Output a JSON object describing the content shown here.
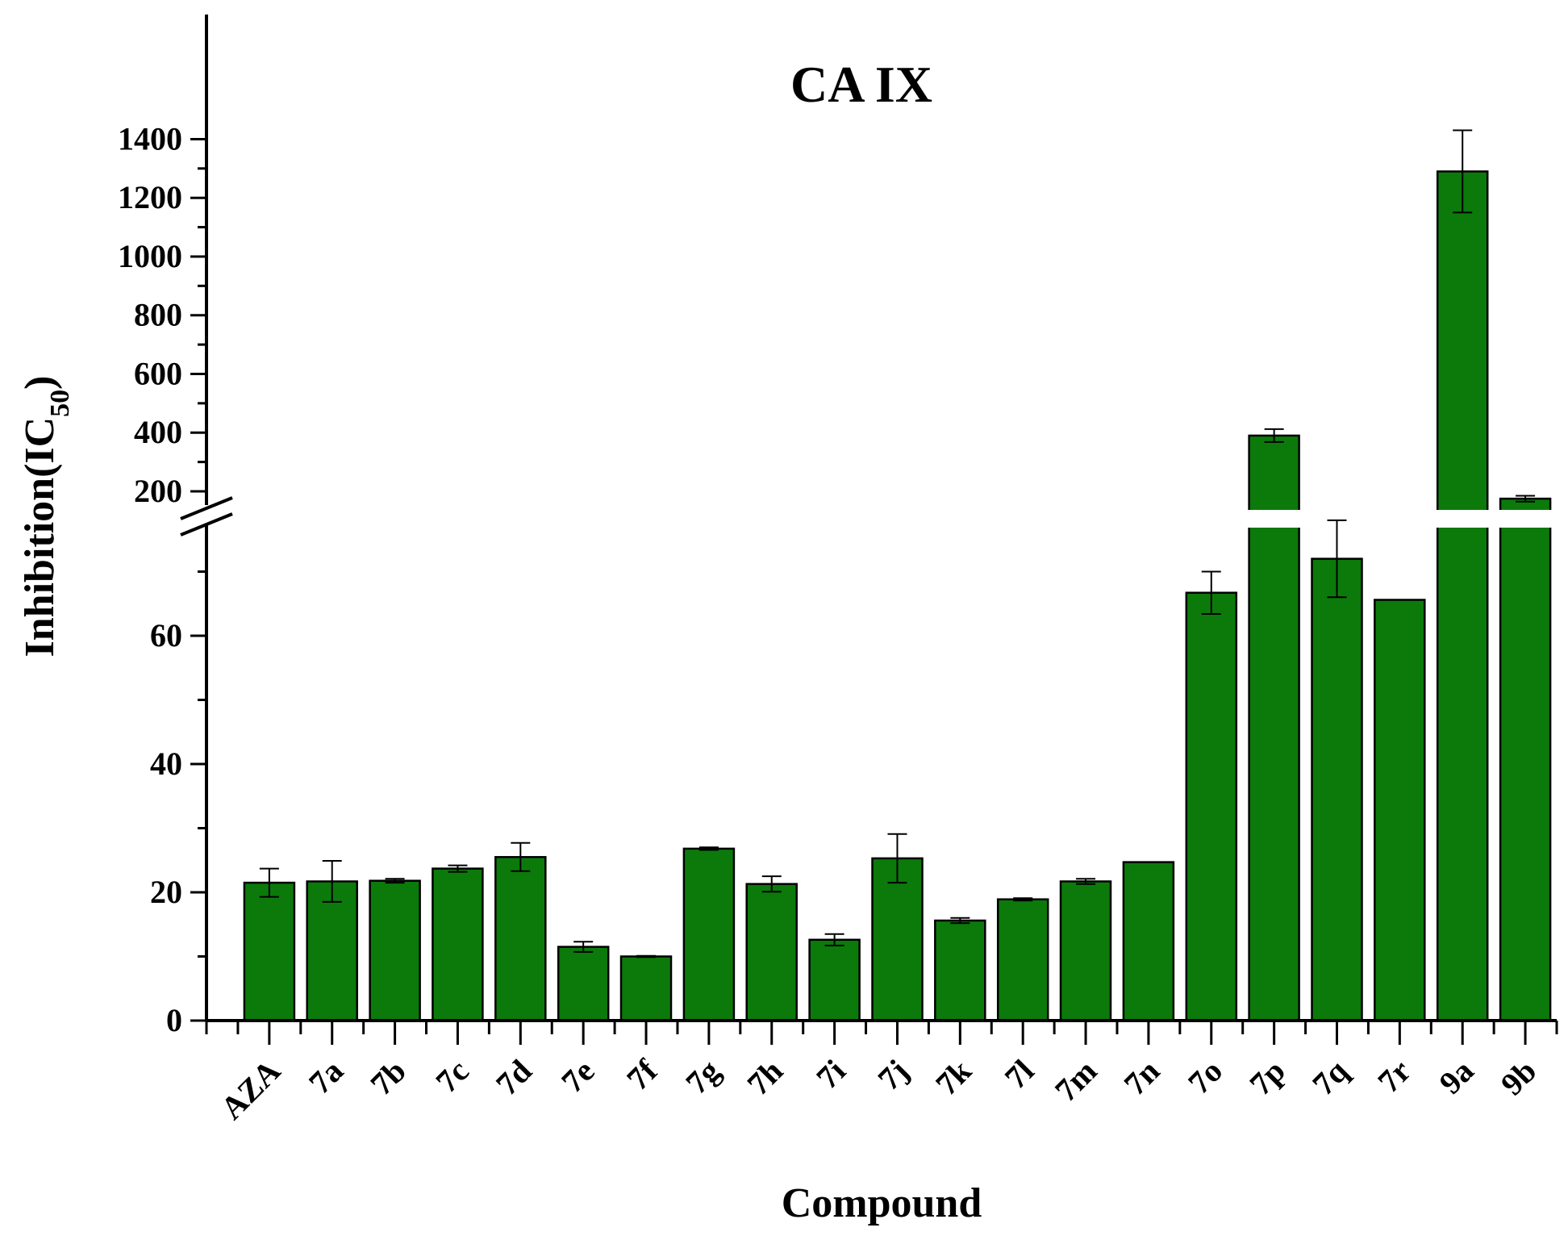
{
  "chart_data": {
    "type": "bar",
    "title": "CA IX",
    "xlabel": "Compound",
    "ylabel_main": "Inhibition(IC",
    "ylabel_sub": "50",
    "ylabel_close": ")",
    "categories": [
      "AZA",
      "7a",
      "7b",
      "7c",
      "7d",
      "7e",
      "7f",
      "7g",
      "7h",
      "7i",
      "7j",
      "7k",
      "7l",
      "7m",
      "7n",
      "7o",
      "7p",
      "7q",
      "7r",
      "9a",
      "9b"
    ],
    "values": [
      21.5,
      21.7,
      21.8,
      23.7,
      25.5,
      11.5,
      10.0,
      26.8,
      21.3,
      12.6,
      25.3,
      15.6,
      18.9,
      21.7,
      24.7,
      66.7,
      390,
      72.0,
      65.6,
      1290,
      175
    ],
    "errors": [
      2.2,
      3.2,
      0.3,
      0.5,
      2.2,
      0.8,
      0.1,
      0.2,
      1.2,
      0.9,
      3.8,
      0.4,
      0.2,
      0.4,
      0,
      3.3,
      22,
      6.0,
      0,
      140,
      10
    ],
    "color": "#0b7a0b",
    "y_axis": {
      "broken": true,
      "lower_range": [
        0,
        80
      ],
      "upper_range": [
        150,
        1450
      ],
      "lower_ticks": [
        "0",
        "20",
        "40",
        "60"
      ],
      "upper_ticks": [
        "200",
        "400",
        "600",
        "800",
        "1000",
        "1200",
        "1400"
      ]
    },
    "grid": false,
    "legend": "none"
  }
}
